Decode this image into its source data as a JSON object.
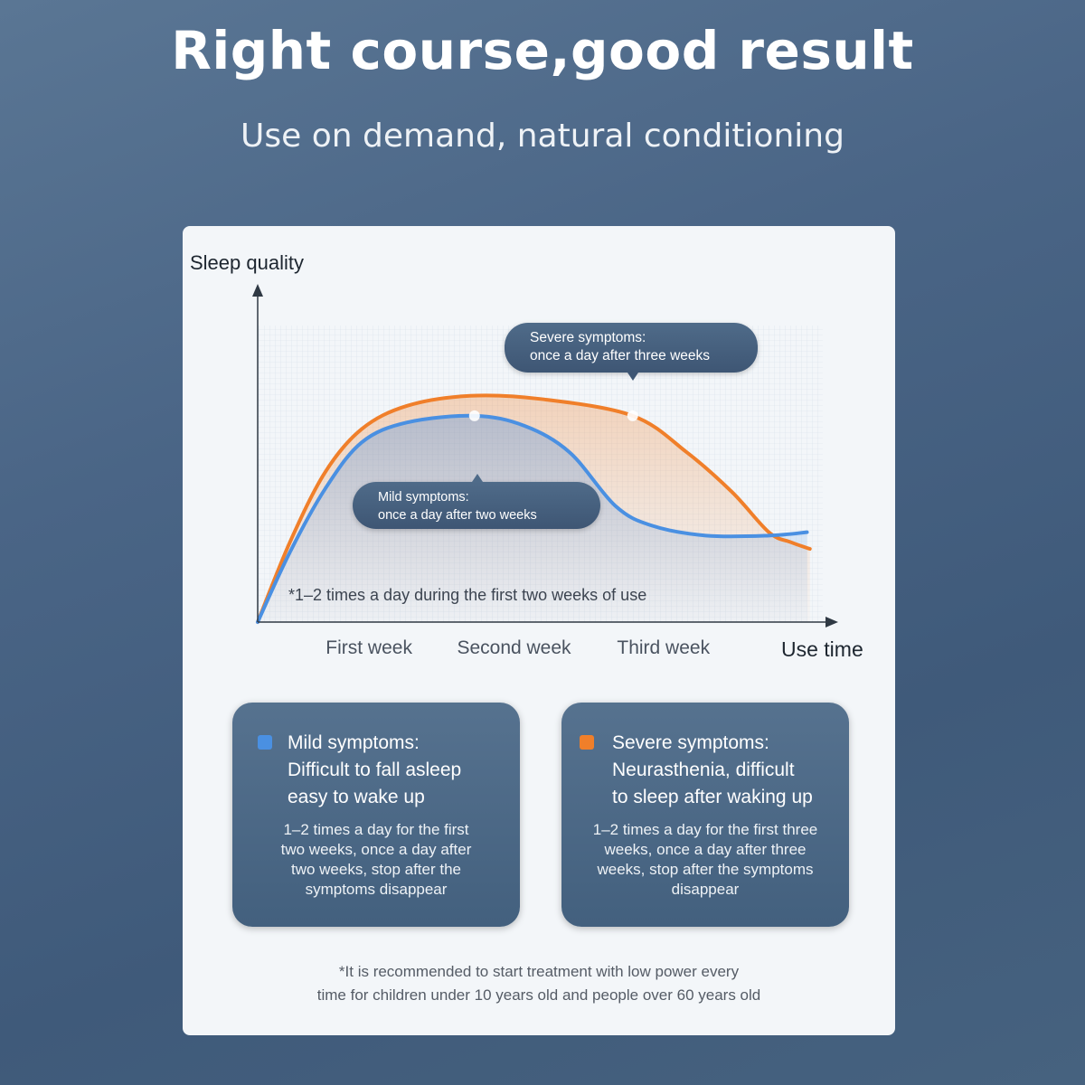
{
  "header": {
    "title": "Right course,good result",
    "subtitle": "Use on demand, natural conditioning"
  },
  "chart_data": {
    "type": "line",
    "ylabel": "Sleep quality",
    "xlabel": "Use time",
    "xticks": [
      {
        "label": "First week",
        "x": 0.76
      },
      {
        "label": "Second week",
        "x": 1.75
      },
      {
        "label": "Third week",
        "x": 2.77
      }
    ],
    "xlim": [
      0,
      3.9
    ],
    "ylim": [
      0,
      1
    ],
    "grid": true,
    "series": [
      {
        "name": "Mild symptoms",
        "color": "#4a90e2",
        "x": [
          0,
          0.22,
          0.46,
          0.71,
          1.02,
          1.48,
          1.82,
          2.13,
          2.44,
          2.69,
          3.06,
          3.49,
          3.75
        ],
        "y": [
          0,
          0.21,
          0.4,
          0.54,
          0.6,
          0.62,
          0.59,
          0.51,
          0.35,
          0.29,
          0.26,
          0.26,
          0.27
        ],
        "marker": {
          "x": 1.48,
          "y": 0.62
        }
      },
      {
        "name": "Severe symptoms",
        "color": "#f07f2a",
        "x": [
          0,
          0.22,
          0.46,
          0.71,
          1.02,
          1.45,
          1.94,
          2.56,
          2.93,
          3.24,
          3.49,
          3.64,
          3.77
        ],
        "y": [
          0,
          0.24,
          0.45,
          0.58,
          0.65,
          0.68,
          0.67,
          0.62,
          0.51,
          0.39,
          0.27,
          0.24,
          0.22
        ],
        "marker": {
          "x": 2.56,
          "y": 0.62
        }
      }
    ],
    "annotations": {
      "severe": [
        "Severe symptoms:",
        "once a day after three weeks"
      ],
      "mild": [
        "Mild symptoms:",
        "once a day after two weeks"
      ],
      "note": "*1–2 times a day during the first two weeks of use"
    }
  },
  "cards": [
    {
      "color": "#4a90e2",
      "head": [
        "Mild symptoms:",
        "Difficult to fall asleep",
        "easy to wake up"
      ],
      "body": [
        "1–2 times a day for the first",
        "two weeks, once a day after",
        "two weeks, stop after the",
        "symptoms disappear"
      ]
    },
    {
      "color": "#f07f2a",
      "head": [
        "Severe symptoms:",
        "Neurasthenia, difficult",
        "to sleep after waking up"
      ],
      "body": [
        "1–2 times a day for the  first three",
        "weeks, once a day after three",
        "weeks, stop after the symptoms",
        "disappear"
      ]
    }
  ],
  "footnote": [
    "*It is recommended to start treatment with low power every",
    "time for children under 10 years old and people over 60 years old"
  ]
}
